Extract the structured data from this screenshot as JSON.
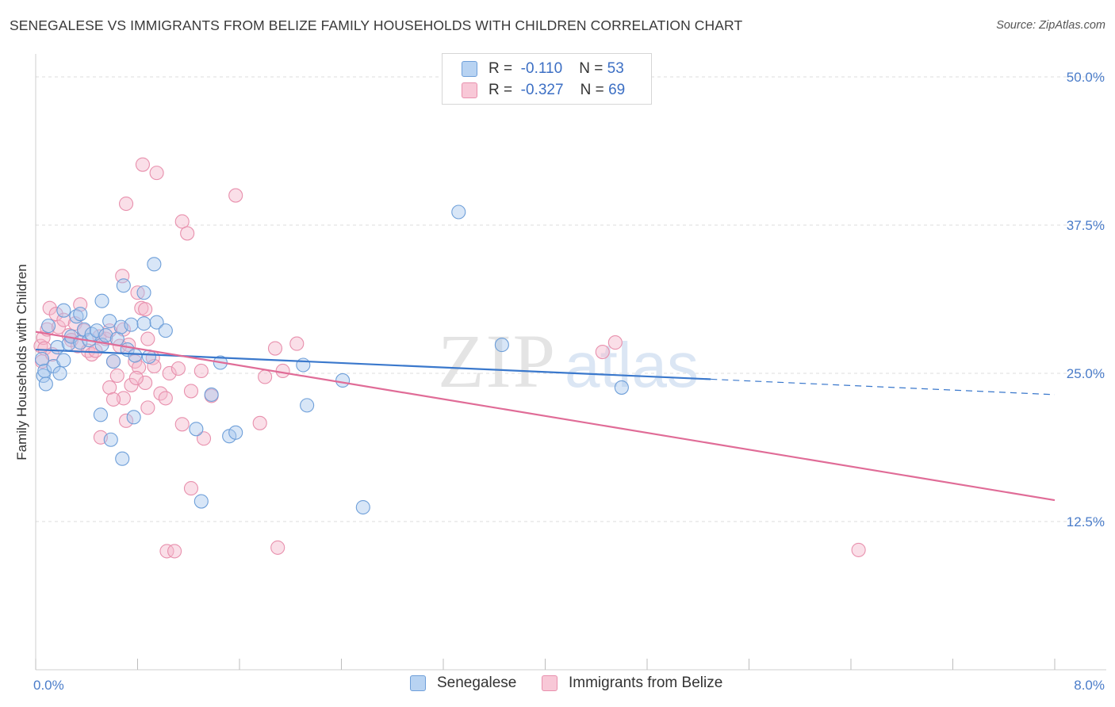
{
  "header": {
    "title": "SENEGALESE VS IMMIGRANTS FROM BELIZE FAMILY HOUSEHOLDS WITH CHILDREN CORRELATION CHART",
    "source": "Source: ZipAtlas.com"
  },
  "watermark": {
    "zip": "ZIP",
    "atlas": "atlas"
  },
  "legend": {
    "series": [
      {
        "r_label": "R =",
        "r_value": "-0.110",
        "n_label": "N =",
        "n_value": "53"
      },
      {
        "r_label": "R =",
        "r_value": "-0.327",
        "n_label": "N =",
        "n_value": "69"
      }
    ]
  },
  "colors": {
    "blue_fill": "#a8c8ee",
    "blue_stroke": "#6e9fd9",
    "blue_line": "#3a78cc",
    "pink_fill": "#f5b8cb",
    "pink_stroke": "#e890ad",
    "pink_line": "#e06c97",
    "tick_text": "#4a7cc9",
    "grid": "#dcdcdc"
  },
  "chart_data": {
    "type": "scatter",
    "ylabel": "Family Households with Children",
    "xlim": [
      0.0,
      8.0
    ],
    "ylim": [
      0.0,
      50.0
    ],
    "x_ticks": [
      "0.0%",
      "8.0%"
    ],
    "y_ticks": [
      {
        "value": 50.0,
        "label": "50.0%"
      },
      {
        "value": 37.5,
        "label": "37.5%"
      },
      {
        "value": 25.0,
        "label": "25.0%"
      },
      {
        "value": 12.5,
        "label": "12.5%"
      }
    ],
    "grid": "horizontal dashed",
    "series": [
      {
        "name": "Senegalese",
        "color_key": "blue",
        "trend": {
          "x": [
            0.0,
            5.3
          ],
          "y": [
            27.0,
            24.5
          ],
          "dashed_to": [
            8.0,
            23.2
          ]
        },
        "points": [
          [
            0.05,
            26.2
          ],
          [
            0.06,
            24.8
          ],
          [
            0.07,
            25.2
          ],
          [
            0.08,
            24.1
          ],
          [
            0.1,
            29.0
          ],
          [
            0.14,
            25.6
          ],
          [
            0.17,
            27.2
          ],
          [
            0.19,
            25.0
          ],
          [
            0.22,
            26.1
          ],
          [
            0.26,
            27.5
          ],
          [
            0.28,
            28.1
          ],
          [
            0.32,
            29.8
          ],
          [
            0.35,
            27.6
          ],
          [
            0.38,
            28.7
          ],
          [
            0.42,
            27.8
          ],
          [
            0.44,
            28.3
          ],
          [
            0.48,
            28.6
          ],
          [
            0.52,
            27.4
          ],
          [
            0.55,
            28.2
          ],
          [
            0.58,
            29.4
          ],
          [
            0.61,
            26.0
          ],
          [
            0.64,
            27.9
          ],
          [
            0.67,
            28.9
          ],
          [
            0.72,
            27.0
          ],
          [
            0.75,
            29.1
          ],
          [
            0.78,
            26.5
          ],
          [
            0.85,
            29.2
          ],
          [
            0.89,
            26.4
          ],
          [
            0.95,
            29.3
          ],
          [
            1.02,
            28.6
          ],
          [
            0.22,
            30.3
          ],
          [
            0.35,
            30.0
          ],
          [
            0.52,
            31.1
          ],
          [
            0.69,
            32.4
          ],
          [
            0.85,
            31.8
          ],
          [
            0.93,
            34.2
          ],
          [
            0.51,
            21.5
          ],
          [
            0.59,
            19.4
          ],
          [
            0.68,
            17.8
          ],
          [
            0.77,
            21.3
          ],
          [
            1.26,
            20.3
          ],
          [
            1.3,
            14.2
          ],
          [
            1.38,
            23.2
          ],
          [
            1.45,
            25.9
          ],
          [
            1.52,
            19.7
          ],
          [
            1.57,
            20.0
          ],
          [
            2.1,
            25.7
          ],
          [
            2.13,
            22.3
          ],
          [
            2.41,
            24.4
          ],
          [
            2.57,
            13.7
          ],
          [
            3.32,
            38.6
          ],
          [
            3.66,
            27.4
          ],
          [
            4.6,
            23.8
          ]
        ]
      },
      {
        "name": "Immigrants from Belize",
        "color_key": "pink",
        "trend": {
          "x": [
            0.0,
            8.0
          ],
          "y": [
            28.5,
            14.3
          ]
        },
        "points": [
          [
            0.04,
            27.3
          ],
          [
            0.05,
            26.0
          ],
          [
            0.06,
            28.0
          ],
          [
            0.07,
            27.1
          ],
          [
            0.09,
            28.7
          ],
          [
            0.11,
            30.5
          ],
          [
            0.13,
            26.6
          ],
          [
            0.16,
            30.0
          ],
          [
            0.18,
            28.9
          ],
          [
            0.22,
            29.5
          ],
          [
            0.26,
            28.2
          ],
          [
            0.28,
            27.8
          ],
          [
            0.31,
            29.2
          ],
          [
            0.33,
            27.3
          ],
          [
            0.35,
            30.8
          ],
          [
            0.38,
            28.6
          ],
          [
            0.41,
            26.9
          ],
          [
            0.44,
            26.6
          ],
          [
            0.47,
            26.9
          ],
          [
            0.5,
            28.1
          ],
          [
            0.55,
            27.9
          ],
          [
            0.58,
            28.6
          ],
          [
            0.61,
            26.0
          ],
          [
            0.66,
            27.3
          ],
          [
            0.69,
            28.7
          ],
          [
            0.73,
            27.4
          ],
          [
            0.78,
            26.0
          ],
          [
            0.83,
            30.5
          ],
          [
            0.88,
            27.9
          ],
          [
            0.92,
            26.3
          ],
          [
            0.58,
            23.8
          ],
          [
            0.64,
            24.8
          ],
          [
            0.69,
            22.9
          ],
          [
            0.75,
            24.0
          ],
          [
            0.81,
            25.5
          ],
          [
            0.86,
            24.2
          ],
          [
            0.93,
            25.6
          ],
          [
            0.98,
            23.3
          ],
          [
            1.05,
            25.0
          ],
          [
            1.12,
            25.4
          ],
          [
            0.61,
            22.8
          ],
          [
            0.71,
            21.0
          ],
          [
            0.79,
            24.6
          ],
          [
            0.88,
            22.1
          ],
          [
            1.02,
            22.9
          ],
          [
            1.15,
            20.7
          ],
          [
            1.22,
            23.5
          ],
          [
            1.3,
            25.2
          ],
          [
            1.38,
            23.1
          ],
          [
            0.51,
            19.6
          ],
          [
            1.32,
            19.5
          ],
          [
            1.22,
            15.3
          ],
          [
            1.03,
            10.0
          ],
          [
            0.68,
            33.2
          ],
          [
            0.8,
            31.8
          ],
          [
            0.86,
            30.4
          ],
          [
            0.71,
            39.3
          ],
          [
            0.84,
            42.6
          ],
          [
            0.95,
            41.9
          ],
          [
            1.15,
            37.8
          ],
          [
            1.19,
            36.8
          ],
          [
            1.57,
            40.0
          ],
          [
            1.8,
            24.7
          ],
          [
            1.88,
            27.1
          ],
          [
            1.94,
            25.2
          ],
          [
            1.76,
            20.8
          ],
          [
            2.05,
            27.5
          ],
          [
            4.45,
            26.8
          ],
          [
            4.55,
            27.6
          ]
        ],
        "extra_points": [
          [
            1.09,
            10.0
          ],
          [
            1.9,
            10.3
          ],
          [
            6.46,
            10.1
          ]
        ]
      }
    ]
  },
  "bottom_legend": [
    {
      "label": "Senegalese"
    },
    {
      "label": "Immigrants from Belize"
    }
  ]
}
